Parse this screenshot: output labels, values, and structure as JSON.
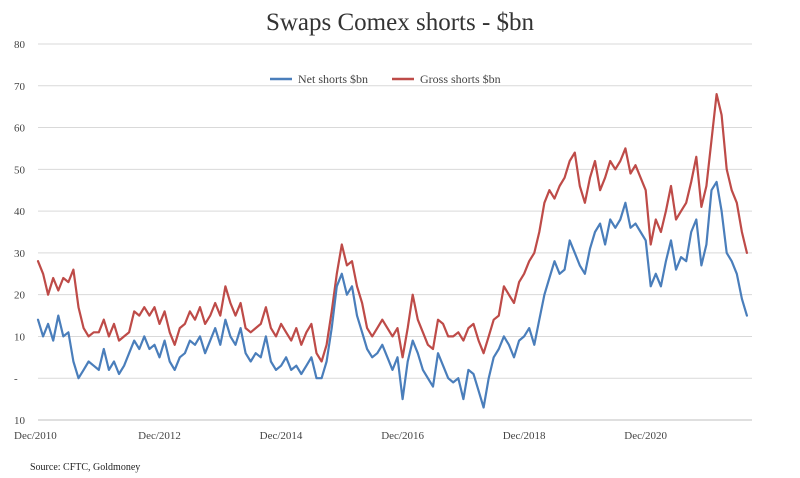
{
  "chart_data": {
    "type": "line",
    "title": "Swaps Comex shorts - $bn",
    "xlabel": "",
    "ylabel": "",
    "ylim": [
      -10,
      80
    ],
    "yticks": [
      -10,
      0,
      10,
      20,
      30,
      40,
      50,
      60,
      70,
      80
    ],
    "ytick_labels": [
      "10",
      "-",
      "10",
      "20",
      "30",
      "40",
      "50",
      "60",
      "70",
      "80"
    ],
    "xlim": [
      "2010-12",
      "2022-09"
    ],
    "xticks": [
      {
        "date": "2010-12",
        "label": "Dec/2010"
      },
      {
        "date": "2012-12",
        "label": "Dec/2012"
      },
      {
        "date": "2014-12",
        "label": "Dec/2014"
      },
      {
        "date": "2016-12",
        "label": "Dec/2016"
      },
      {
        "date": "2018-12",
        "label": "Dec/2018"
      },
      {
        "date": "2020-12",
        "label": "Dec/2020"
      }
    ],
    "grid": true,
    "legend": "top-center",
    "series": [
      {
        "name": "Net shorts $bn",
        "color": "#4a7ebb",
        "points": [
          [
            "2010-12",
            14
          ],
          [
            "2011-01",
            10
          ],
          [
            "2011-02",
            13
          ],
          [
            "2011-03",
            9
          ],
          [
            "2011-04",
            15
          ],
          [
            "2011-05",
            10
          ],
          [
            "2011-06",
            11
          ],
          [
            "2011-07",
            4
          ],
          [
            "2011-08",
            0
          ],
          [
            "2011-09",
            2
          ],
          [
            "2011-10",
            4
          ],
          [
            "2011-11",
            3
          ],
          [
            "2011-12",
            2
          ],
          [
            "2012-01",
            7
          ],
          [
            "2012-02",
            2
          ],
          [
            "2012-03",
            4
          ],
          [
            "2012-04",
            1
          ],
          [
            "2012-05",
            3
          ],
          [
            "2012-06",
            6
          ],
          [
            "2012-07",
            9
          ],
          [
            "2012-08",
            7
          ],
          [
            "2012-09",
            10
          ],
          [
            "2012-10",
            7
          ],
          [
            "2012-11",
            8
          ],
          [
            "2012-12",
            5
          ],
          [
            "2013-01",
            9
          ],
          [
            "2013-02",
            4
          ],
          [
            "2013-03",
            2
          ],
          [
            "2013-04",
            5
          ],
          [
            "2013-05",
            6
          ],
          [
            "2013-06",
            9
          ],
          [
            "2013-07",
            8
          ],
          [
            "2013-08",
            10
          ],
          [
            "2013-09",
            6
          ],
          [
            "2013-10",
            9
          ],
          [
            "2013-11",
            12
          ],
          [
            "2013-12",
            8
          ],
          [
            "2014-01",
            14
          ],
          [
            "2014-02",
            10
          ],
          [
            "2014-03",
            8
          ],
          [
            "2014-04",
            12
          ],
          [
            "2014-05",
            6
          ],
          [
            "2014-06",
            4
          ],
          [
            "2014-07",
            6
          ],
          [
            "2014-08",
            5
          ],
          [
            "2014-09",
            10
          ],
          [
            "2014-10",
            4
          ],
          [
            "2014-11",
            2
          ],
          [
            "2014-12",
            3
          ],
          [
            "2015-01",
            5
          ],
          [
            "2015-02",
            2
          ],
          [
            "2015-03",
            3
          ],
          [
            "2015-04",
            1
          ],
          [
            "2015-05",
            3
          ],
          [
            "2015-06",
            5
          ],
          [
            "2015-07",
            0
          ],
          [
            "2015-08",
            0
          ],
          [
            "2015-09",
            4
          ],
          [
            "2015-10",
            12
          ],
          [
            "2015-11",
            22
          ],
          [
            "2015-12",
            25
          ],
          [
            "2016-01",
            20
          ],
          [
            "2016-02",
            22
          ],
          [
            "2016-03",
            15
          ],
          [
            "2016-04",
            11
          ],
          [
            "2016-05",
            7
          ],
          [
            "2016-06",
            5
          ],
          [
            "2016-07",
            6
          ],
          [
            "2016-08",
            8
          ],
          [
            "2016-09",
            5
          ],
          [
            "2016-10",
            2
          ],
          [
            "2016-11",
            5
          ],
          [
            "2016-12",
            -5
          ],
          [
            "2017-01",
            4
          ],
          [
            "2017-02",
            9
          ],
          [
            "2017-03",
            6
          ],
          [
            "2017-04",
            2
          ],
          [
            "2017-05",
            0
          ],
          [
            "2017-06",
            -2
          ],
          [
            "2017-07",
            6
          ],
          [
            "2017-08",
            3
          ],
          [
            "2017-09",
            0
          ],
          [
            "2017-10",
            -1
          ],
          [
            "2017-11",
            0
          ],
          [
            "2017-12",
            -5
          ],
          [
            "2018-01",
            2
          ],
          [
            "2018-02",
            1
          ],
          [
            "2018-03",
            -3
          ],
          [
            "2018-04",
            -7
          ],
          [
            "2018-05",
            0
          ],
          [
            "2018-06",
            5
          ],
          [
            "2018-07",
            7
          ],
          [
            "2018-08",
            10
          ],
          [
            "2018-09",
            8
          ],
          [
            "2018-10",
            5
          ],
          [
            "2018-11",
            9
          ],
          [
            "2018-12",
            10
          ],
          [
            "2019-01",
            12
          ],
          [
            "2019-02",
            8
          ],
          [
            "2019-03",
            14
          ],
          [
            "2019-04",
            20
          ],
          [
            "2019-05",
            24
          ],
          [
            "2019-06",
            28
          ],
          [
            "2019-07",
            25
          ],
          [
            "2019-08",
            26
          ],
          [
            "2019-09",
            33
          ],
          [
            "2019-10",
            30
          ],
          [
            "2019-11",
            27
          ],
          [
            "2019-12",
            25
          ],
          [
            "2020-01",
            31
          ],
          [
            "2020-02",
            35
          ],
          [
            "2020-03",
            37
          ],
          [
            "2020-04",
            32
          ],
          [
            "2020-05",
            38
          ],
          [
            "2020-06",
            36
          ],
          [
            "2020-07",
            38
          ],
          [
            "2020-08",
            42
          ],
          [
            "2020-09",
            36
          ],
          [
            "2020-10",
            37
          ],
          [
            "2020-11",
            35
          ],
          [
            "2020-12",
            33
          ],
          [
            "2021-01",
            22
          ],
          [
            "2021-02",
            25
          ],
          [
            "2021-03",
            22
          ],
          [
            "2021-04",
            28
          ],
          [
            "2021-05",
            33
          ],
          [
            "2021-06",
            26
          ],
          [
            "2021-07",
            29
          ],
          [
            "2021-08",
            28
          ],
          [
            "2021-09",
            35
          ],
          [
            "2021-10",
            38
          ],
          [
            "2021-11",
            27
          ],
          [
            "2021-12",
            32
          ],
          [
            "2022-01",
            45
          ],
          [
            "2022-02",
            47
          ],
          [
            "2022-03",
            40
          ],
          [
            "2022-04",
            30
          ],
          [
            "2022-05",
            28
          ],
          [
            "2022-06",
            25
          ],
          [
            "2022-07",
            19
          ],
          [
            "2022-08",
            15
          ]
        ]
      },
      {
        "name": "Gross shorts $bn",
        "color": "#be4b48",
        "points": [
          [
            "2010-12",
            28
          ],
          [
            "2011-01",
            25
          ],
          [
            "2011-02",
            20
          ],
          [
            "2011-03",
            24
          ],
          [
            "2011-04",
            21
          ],
          [
            "2011-05",
            24
          ],
          [
            "2011-06",
            23
          ],
          [
            "2011-07",
            26
          ],
          [
            "2011-08",
            17
          ],
          [
            "2011-09",
            12
          ],
          [
            "2011-10",
            10
          ],
          [
            "2011-11",
            11
          ],
          [
            "2011-12",
            11
          ],
          [
            "2012-01",
            14
          ],
          [
            "2012-02",
            10
          ],
          [
            "2012-03",
            13
          ],
          [
            "2012-04",
            9
          ],
          [
            "2012-05",
            10
          ],
          [
            "2012-06",
            11
          ],
          [
            "2012-07",
            16
          ],
          [
            "2012-08",
            15
          ],
          [
            "2012-09",
            17
          ],
          [
            "2012-10",
            15
          ],
          [
            "2012-11",
            17
          ],
          [
            "2012-12",
            13
          ],
          [
            "2013-01",
            16
          ],
          [
            "2013-02",
            11
          ],
          [
            "2013-03",
            8
          ],
          [
            "2013-04",
            12
          ],
          [
            "2013-05",
            13
          ],
          [
            "2013-06",
            16
          ],
          [
            "2013-07",
            14
          ],
          [
            "2013-08",
            17
          ],
          [
            "2013-09",
            13
          ],
          [
            "2013-10",
            15
          ],
          [
            "2013-11",
            18
          ],
          [
            "2013-12",
            15
          ],
          [
            "2014-01",
            22
          ],
          [
            "2014-02",
            18
          ],
          [
            "2014-03",
            15
          ],
          [
            "2014-04",
            18
          ],
          [
            "2014-05",
            12
          ],
          [
            "2014-06",
            11
          ],
          [
            "2014-07",
            12
          ],
          [
            "2014-08",
            13
          ],
          [
            "2014-09",
            17
          ],
          [
            "2014-10",
            12
          ],
          [
            "2014-11",
            10
          ],
          [
            "2014-12",
            13
          ],
          [
            "2015-01",
            11
          ],
          [
            "2015-02",
            9
          ],
          [
            "2015-03",
            12
          ],
          [
            "2015-04",
            8
          ],
          [
            "2015-05",
            11
          ],
          [
            "2015-06",
            13
          ],
          [
            "2015-07",
            6
          ],
          [
            "2015-08",
            4
          ],
          [
            "2015-09",
            8
          ],
          [
            "2015-10",
            16
          ],
          [
            "2015-11",
            25
          ],
          [
            "2015-12",
            32
          ],
          [
            "2016-01",
            27
          ],
          [
            "2016-02",
            28
          ],
          [
            "2016-03",
            22
          ],
          [
            "2016-04",
            18
          ],
          [
            "2016-05",
            12
          ],
          [
            "2016-06",
            10
          ],
          [
            "2016-07",
            12
          ],
          [
            "2016-08",
            14
          ],
          [
            "2016-09",
            12
          ],
          [
            "2016-10",
            10
          ],
          [
            "2016-11",
            12
          ],
          [
            "2016-12",
            5
          ],
          [
            "2017-01",
            12
          ],
          [
            "2017-02",
            20
          ],
          [
            "2017-03",
            14
          ],
          [
            "2017-04",
            11
          ],
          [
            "2017-05",
            8
          ],
          [
            "2017-06",
            7
          ],
          [
            "2017-07",
            14
          ],
          [
            "2017-08",
            13
          ],
          [
            "2017-09",
            10
          ],
          [
            "2017-10",
            10
          ],
          [
            "2017-11",
            11
          ],
          [
            "2017-12",
            9
          ],
          [
            "2018-01",
            12
          ],
          [
            "2018-02",
            13
          ],
          [
            "2018-03",
            9
          ],
          [
            "2018-04",
            6
          ],
          [
            "2018-05",
            10
          ],
          [
            "2018-06",
            14
          ],
          [
            "2018-07",
            15
          ],
          [
            "2018-08",
            22
          ],
          [
            "2018-09",
            20
          ],
          [
            "2018-10",
            18
          ],
          [
            "2018-11",
            23
          ],
          [
            "2018-12",
            25
          ],
          [
            "2019-01",
            28
          ],
          [
            "2019-02",
            30
          ],
          [
            "2019-03",
            35
          ],
          [
            "2019-04",
            42
          ],
          [
            "2019-05",
            45
          ],
          [
            "2019-06",
            43
          ],
          [
            "2019-07",
            46
          ],
          [
            "2019-08",
            48
          ],
          [
            "2019-09",
            52
          ],
          [
            "2019-10",
            54
          ],
          [
            "2019-11",
            46
          ],
          [
            "2019-12",
            42
          ],
          [
            "2020-01",
            48
          ],
          [
            "2020-02",
            52
          ],
          [
            "2020-03",
            45
          ],
          [
            "2020-04",
            48
          ],
          [
            "2020-05",
            52
          ],
          [
            "2020-06",
            50
          ],
          [
            "2020-07",
            52
          ],
          [
            "2020-08",
            55
          ],
          [
            "2020-09",
            49
          ],
          [
            "2020-10",
            51
          ],
          [
            "2020-11",
            48
          ],
          [
            "2020-12",
            45
          ],
          [
            "2021-01",
            32
          ],
          [
            "2021-02",
            38
          ],
          [
            "2021-03",
            35
          ],
          [
            "2021-04",
            40
          ],
          [
            "2021-05",
            46
          ],
          [
            "2021-06",
            38
          ],
          [
            "2021-07",
            40
          ],
          [
            "2021-08",
            42
          ],
          [
            "2021-09",
            47
          ],
          [
            "2021-10",
            53
          ],
          [
            "2021-11",
            41
          ],
          [
            "2021-12",
            46
          ],
          [
            "2022-01",
            57
          ],
          [
            "2022-02",
            68
          ],
          [
            "2022-03",
            63
          ],
          [
            "2022-04",
            50
          ],
          [
            "2022-05",
            45
          ],
          [
            "2022-06",
            42
          ],
          [
            "2022-07",
            35
          ],
          [
            "2022-08",
            30
          ]
        ]
      }
    ],
    "source": "Source: CFTC, Goldmoney"
  }
}
